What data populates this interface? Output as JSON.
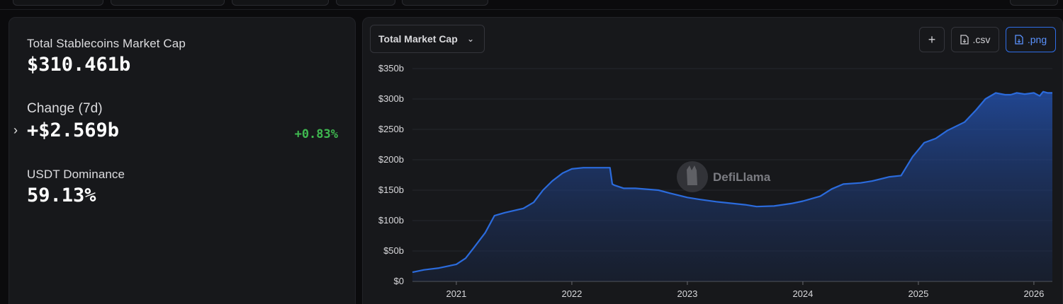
{
  "stats": {
    "total_label": "Total Stablecoins Market Cap",
    "total_value": "$310.461b",
    "change_label": "Change (7d)",
    "change_value": "+$2.569b",
    "change_pct": "+0.83%",
    "dominance_label": "USDT Dominance",
    "dominance_value": "59.13%"
  },
  "toolbar": {
    "metric_select": "Total Market Cap",
    "add_label": "+",
    "csv_label": ".csv",
    "png_label": ".png"
  },
  "watermark": "DefiLlama",
  "colors": {
    "line": "#2b6bdc",
    "positive": "#3fb950",
    "accent": "#2f6ee8"
  },
  "chart_data": {
    "type": "area",
    "title": "",
    "xlabel": "",
    "ylabel": "",
    "ylim": [
      0,
      350
    ],
    "y_ticks": [
      "$0",
      "$50b",
      "$100b",
      "$150b",
      "$200b",
      "$250b",
      "$300b",
      "$350b"
    ],
    "y_tick_values": [
      0,
      50,
      100,
      150,
      200,
      250,
      300,
      350
    ],
    "x_ticks": [
      "2021",
      "2022",
      "2023",
      "2024",
      "2025",
      "2026"
    ],
    "x_tick_values": [
      2021,
      2022,
      2023,
      2024,
      2025,
      2026
    ],
    "xlim": [
      2020.62,
      2026.16
    ],
    "grid": "horizontal",
    "series": [
      {
        "x": [
          2020.62,
          2020.72,
          2020.85,
          2021.0,
          2021.08,
          2021.15,
          2021.25,
          2021.33,
          2021.42,
          2021.58,
          2021.67,
          2021.75,
          2021.83,
          2021.92,
          2022.0,
          2022.1,
          2022.2,
          2022.33,
          2022.35,
          2022.37,
          2022.45,
          2022.55,
          2022.75,
          2022.85,
          2023.0,
          2023.1,
          2023.25,
          2023.5,
          2023.6,
          2023.75,
          2023.9,
          2024.0,
          2024.15,
          2024.25,
          2024.35,
          2024.5,
          2024.6,
          2024.75,
          2024.85,
          2024.95,
          2025.05,
          2025.15,
          2025.25,
          2025.4,
          2025.5,
          2025.58,
          2025.67,
          2025.75,
          2025.8,
          2025.85,
          2025.92,
          2026.0,
          2026.05,
          2026.08,
          2026.12,
          2026.16
        ],
        "y": [
          15,
          19,
          22,
          28,
          38,
          55,
          80,
          108,
          113,
          120,
          130,
          150,
          165,
          178,
          185,
          187,
          187,
          187,
          160,
          158,
          153,
          153,
          150,
          145,
          138,
          135,
          131,
          126,
          123,
          124,
          128,
          132,
          140,
          152,
          160,
          162,
          165,
          172,
          174,
          205,
          228,
          235,
          248,
          262,
          282,
          300,
          310,
          307,
          307,
          310,
          308,
          310,
          305,
          312,
          310,
          310
        ]
      }
    ]
  }
}
